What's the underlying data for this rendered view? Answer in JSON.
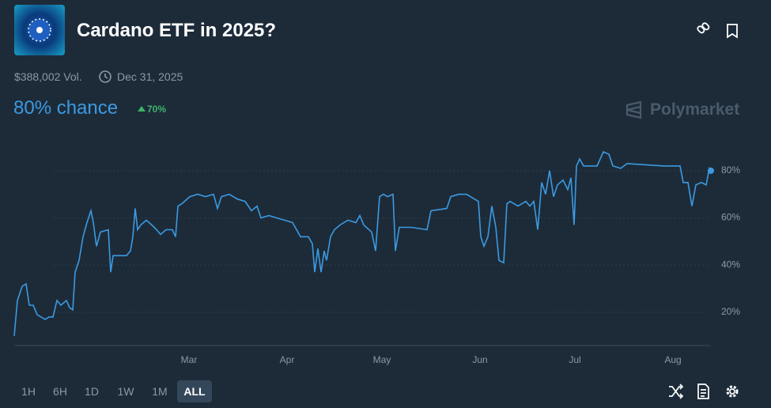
{
  "header": {
    "title": "Cardano ETF in 2025?",
    "volume": "$388,002 Vol.",
    "end_date": "Dec 31, 2025",
    "chance": "80% chance",
    "change": "70%",
    "brand": "Polymarket"
  },
  "controls": {
    "ranges": [
      "1H",
      "6H",
      "1D",
      "1W",
      "1M",
      "ALL"
    ],
    "selected": "ALL"
  },
  "chart_data": {
    "type": "line",
    "color": "#3b9ae1",
    "x": [
      3.75,
      4.75,
      6.25,
      7.5,
      8.5,
      9.75,
      11,
      12.25,
      13.5,
      14.75,
      16,
      17.25,
      18.5,
      20.25,
      21.25,
      22.25,
      23,
      24.25,
      25.5,
      26.75,
      28,
      28.75,
      29.75,
      31,
      33.5,
      34.25,
      35,
      39.25,
      40.5,
      41.25,
      42,
      42.75,
      43.75,
      45.5,
      47.25,
      48.75,
      50,
      51.75,
      53.75,
      54.75,
      55.5,
      56.75,
      59.25,
      61.75,
      64.25,
      66.75,
      68,
      69.25,
      71.75,
      74.25,
      76.75,
      78.75,
      80.5,
      81.75,
      84.25,
      86.75,
      89.25,
      91.75,
      93,
      94.25,
      96.75,
      98,
      98.75,
      99.75,
      100.75,
      101.75,
      102.5,
      103.75,
      105,
      106.75,
      109.25,
      111.75,
      113,
      114.25,
      116.75,
      118,
      119.25,
      120.5,
      121.75,
      123.5,
      124.25,
      125.5,
      129.25,
      134.25,
      135.5,
      140.5,
      141.75,
      144.25,
      146.75,
      149.25,
      150.5,
      151.25,
      152.25,
      153.5,
      154.75,
      156,
      157,
      158.5,
      159.5,
      160.5,
      163,
      165.5,
      166.75,
      168,
      169.25,
      170.5,
      171.75,
      173,
      174.25,
      175.5,
      177.25,
      178.75,
      179.75,
      180.75,
      181.5,
      182.5,
      183.75,
      188,
      190,
      191.75,
      193,
      195.5,
      197.5,
      209.25,
      214.25,
      215.25,
      216.75,
      218,
      219.25,
      221,
      222.5,
      223.5,
      224
    ],
    "values": [
      10,
      25,
      31,
      32,
      23,
      23,
      19,
      18,
      17,
      18,
      18,
      25,
      23,
      25,
      22,
      21,
      37,
      42,
      52,
      58,
      63,
      58,
      48,
      54,
      55,
      37,
      44,
      44,
      46,
      52,
      64,
      55,
      57,
      59,
      57,
      55,
      53,
      55,
      55,
      52,
      65,
      66,
      69,
      70,
      69,
      70,
      64,
      69,
      70,
      68,
      67,
      63,
      65,
      60,
      61,
      60,
      59,
      58,
      55,
      52,
      52,
      49,
      37,
      47,
      37,
      46,
      42,
      52,
      55,
      57,
      59,
      58,
      61,
      57,
      54,
      46,
      69,
      70,
      69,
      70,
      46,
      56,
      56,
      55,
      63,
      64,
      69,
      70,
      70,
      68,
      67,
      52,
      48,
      52,
      65,
      56,
      42,
      41,
      66,
      67,
      65,
      67,
      65,
      67,
      55,
      75,
      70,
      80,
      69,
      74,
      76,
      72,
      77,
      57,
      82,
      85,
      82,
      82,
      88,
      87,
      82,
      81,
      83,
      82,
      82,
      75,
      75,
      65,
      74,
      75,
      74,
      81,
      80
    ],
    "xlim": [
      3.75,
      224.75
    ],
    "xticks": [
      {
        "value": 59,
        "label": "Mar"
      },
      {
        "value": 90,
        "label": "Apr"
      },
      {
        "value": 120,
        "label": "May"
      },
      {
        "value": 151,
        "label": "Jun"
      },
      {
        "value": 181,
        "label": "Jul"
      },
      {
        "value": 212,
        "label": "Aug"
      }
    ],
    "ylim": [
      5.9,
      93.7
    ],
    "yticks": [
      {
        "value": 20,
        "label": "20%"
      },
      {
        "value": 40,
        "label": "40%"
      },
      {
        "value": 60,
        "label": "60%"
      },
      {
        "value": 80,
        "label": "80%"
      }
    ],
    "grid": true
  }
}
